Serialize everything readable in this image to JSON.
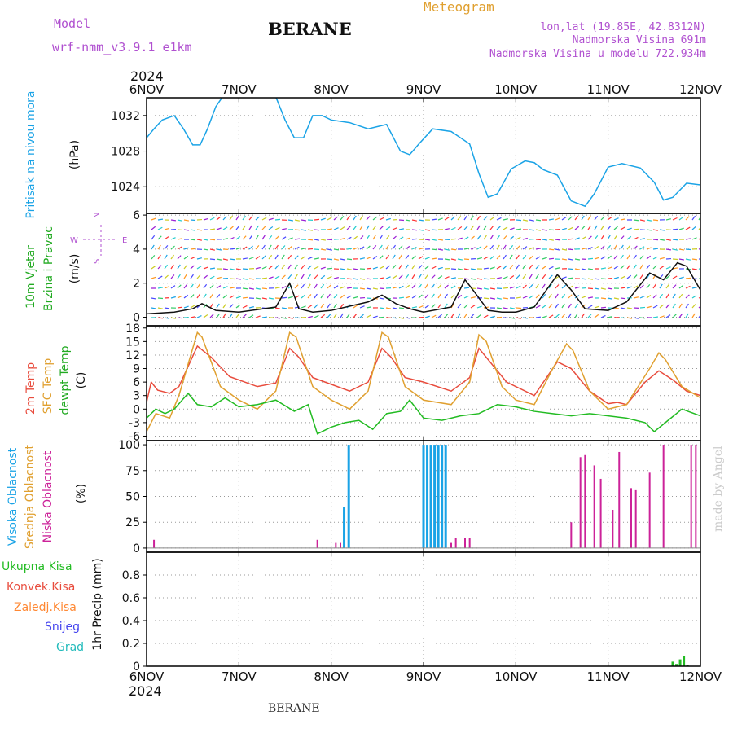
{
  "header": {
    "model_label": "Model",
    "model_name": "wrf-nmm_v3.9.1  e1km",
    "station": "BERANE",
    "meteogram_label": "Meteogram",
    "location_line": "lon,lat (19.85E, 42.8312N)",
    "elevation_line": "Nadmorska Visina 691m",
    "model_elevation_line": "Nadmorska Visina u modelu 722.934m",
    "bottom_station": "BERANE",
    "watermark": "made by Angel"
  },
  "time_axis": {
    "year": "2024",
    "ticks": [
      "6NOV",
      "7NOV",
      "8NOV",
      "9NOV",
      "10NOV",
      "11NOV",
      "12NOV"
    ]
  },
  "colors": {
    "pressure": "#1aa3e6",
    "temp_2m": "#e84c3d",
    "temp_sfc": "#e0a030",
    "dewpoint": "#22bb22",
    "cloud_high": "#1aa3e6",
    "cloud_mid": "#e0a030",
    "cloud_low": "#cc2299",
    "precip_total": "#22bb22",
    "precip_conv": "#e84c3d",
    "freezing": "#ff8833",
    "snow": "#4444ee",
    "hail": "#22bbbb",
    "wind_label": "#22aa22",
    "compass": "#b050d0",
    "header_purple": "#b050d0",
    "meteogram_gold": "#e0a030"
  },
  "chart_data": [
    {
      "type": "line",
      "title": "Pritisak na nivou mora",
      "ylabel": "(hPa)",
      "ylim": [
        1021,
        1034
      ],
      "yticks": [
        1024,
        1028,
        1032
      ],
      "grid": true,
      "x_units": "days since 6NOV 00UTC",
      "series": [
        {
          "name": "Pritisak na nivou mora",
          "x": [
            0,
            0.08,
            0.17,
            0.3,
            0.4,
            0.5,
            0.58,
            0.66,
            0.75,
            0.85,
            1.0,
            1.15,
            1.25,
            1.35,
            1.5,
            1.6,
            1.7,
            1.8,
            1.9,
            2.0,
            2.2,
            2.4,
            2.6,
            2.75,
            2.85,
            2.95,
            3.1,
            3.3,
            3.5,
            3.6,
            3.7,
            3.8,
            3.95,
            4.1,
            4.2,
            4.3,
            4.45,
            4.6,
            4.75,
            4.85,
            5.0,
            5.15,
            5.35,
            5.5,
            5.6,
            5.7,
            5.85,
            6.0
          ],
          "values": [
            1029.5,
            1030.5,
            1031.5,
            1032,
            1030.5,
            1028.7,
            1028.7,
            1030.5,
            1033,
            1034.5,
            1034.8,
            1035,
            1035.8,
            1035.4,
            1031.5,
            1029.5,
            1029.5,
            1032,
            1032,
            1031.5,
            1031.2,
            1030.5,
            1031,
            1028,
            1027.6,
            1028.8,
            1030.5,
            1030.2,
            1028.8,
            1025.5,
            1022.8,
            1023.2,
            1026,
            1026.9,
            1026.7,
            1025.9,
            1025.3,
            1022.4,
            1021.8,
            1023.2,
            1026.2,
            1026.6,
            1026.1,
            1024.5,
            1022.5,
            1022.8,
            1024.4,
            1024.2
          ]
        }
      ]
    },
    {
      "type": "line",
      "title": "10m Vjetar Brzina i Pravac",
      "ylabel": "(m/s)",
      "ylim": [
        -0.5,
        6.1
      ],
      "yticks": [
        0,
        2,
        4,
        6
      ],
      "grid": true,
      "compass": {
        "north": "N",
        "south": "S",
        "west": "W",
        "east": "E"
      },
      "series": [
        {
          "name": "Brzina vjetra",
          "x": [
            0,
            0.3,
            0.5,
            0.6,
            0.75,
            1.0,
            1.4,
            1.55,
            1.65,
            1.8,
            2.0,
            2.4,
            2.55,
            2.7,
            2.85,
            3.0,
            3.3,
            3.45,
            3.55,
            3.7,
            3.85,
            4.0,
            4.2,
            4.45,
            4.6,
            4.75,
            5.0,
            5.2,
            5.45,
            5.6,
            5.75,
            5.85,
            6.0
          ],
          "values": [
            0.2,
            0.3,
            0.5,
            0.8,
            0.4,
            0.3,
            0.6,
            2.0,
            0.5,
            0.3,
            0.4,
            0.9,
            1.3,
            0.8,
            0.5,
            0.3,
            0.6,
            2.2,
            1.5,
            0.4,
            0.3,
            0.3,
            0.6,
            2.5,
            1.6,
            0.5,
            0.4,
            0.9,
            2.6,
            2.2,
            3.2,
            3.0,
            1.6
          ]
        }
      ]
    },
    {
      "type": "line",
      "title": "2m Temp / SFC Temp / dewpt Temp",
      "ylabel": "(C)",
      "ylim": [
        -7,
        18.5
      ],
      "yticks": [
        -6,
        -3,
        0,
        3,
        6,
        9,
        12,
        15,
        18
      ],
      "grid": true,
      "series": [
        {
          "name": "2m Temp",
          "x": [
            0,
            0.05,
            0.12,
            0.25,
            0.35,
            0.55,
            0.7,
            0.9,
            1.2,
            1.4,
            1.55,
            1.65,
            1.8,
            2.0,
            2.2,
            2.4,
            2.55,
            2.65,
            2.8,
            3.0,
            3.3,
            3.5,
            3.6,
            3.7,
            3.9,
            4.2,
            4.45,
            4.6,
            4.8,
            5.0,
            5.1,
            5.2,
            5.4,
            5.55,
            5.7,
            5.85,
            6.0
          ],
          "values": [
            1.5,
            6.0,
            4.2,
            3.5,
            5.0,
            14.0,
            11.5,
            7.2,
            5.0,
            5.8,
            13.5,
            11.5,
            7.0,
            5.5,
            4.0,
            6.0,
            13.5,
            11.5,
            7.0,
            6.0,
            4.0,
            7.0,
            13.5,
            11.0,
            6.0,
            3.0,
            10.5,
            9.0,
            4.0,
            1.2,
            1.5,
            1.0,
            6.0,
            8.5,
            6.5,
            4.0,
            3.0
          ]
        },
        {
          "name": "SFC Temp",
          "x": [
            0,
            0.1,
            0.25,
            0.35,
            0.55,
            0.6,
            0.8,
            1.0,
            1.2,
            1.4,
            1.55,
            1.62,
            1.8,
            2.0,
            2.2,
            2.4,
            2.55,
            2.62,
            2.8,
            3.0,
            3.3,
            3.5,
            3.6,
            3.68,
            3.85,
            4.0,
            4.2,
            4.4,
            4.55,
            4.62,
            4.8,
            5.0,
            5.2,
            5.45,
            5.55,
            5.62,
            5.8,
            6.0
          ],
          "values": [
            -5,
            -1,
            -2,
            3,
            17,
            16,
            5,
            2,
            0,
            4,
            17,
            16,
            5,
            2,
            0,
            4,
            17,
            16,
            5,
            2,
            1,
            6,
            16.5,
            15,
            5,
            2,
            1,
            9,
            14.5,
            13,
            4,
            0,
            1,
            9,
            12.5,
            11,
            5,
            2.5
          ]
        },
        {
          "name": "dewpt Temp",
          "x": [
            0,
            0.1,
            0.2,
            0.3,
            0.45,
            0.55,
            0.7,
            0.85,
            1.0,
            1.2,
            1.4,
            1.6,
            1.75,
            1.85,
            2.0,
            2.15,
            2.3,
            2.45,
            2.6,
            2.75,
            2.85,
            3.0,
            3.2,
            3.4,
            3.6,
            3.8,
            4.0,
            4.2,
            4.4,
            4.6,
            4.8,
            5.0,
            5.2,
            5.4,
            5.5,
            5.65,
            5.8,
            6.0
          ],
          "values": [
            -2,
            0,
            -1,
            0,
            3.5,
            1.0,
            0.5,
            2.5,
            0.5,
            1.0,
            2.0,
            -0.5,
            1.0,
            -5.5,
            -4,
            -3,
            -2.5,
            -4.5,
            -1,
            -0.5,
            2,
            -2,
            -2.5,
            -1.5,
            -1,
            1,
            0.5,
            -0.5,
            -1.0,
            -1.5,
            -1.0,
            -1.5,
            -2,
            -3,
            -5,
            -2.5,
            0,
            -1.5
          ]
        }
      ]
    },
    {
      "type": "bar",
      "title": "Visoka / Srednja / Niska Oblacnost",
      "ylabel": "(%)",
      "ylim": [
        -4,
        104
      ],
      "yticks": [
        0,
        25,
        50,
        75,
        100
      ],
      "grid": true,
      "series": [
        {
          "name": "Visoka Oblacnost",
          "x": [
            2.14,
            2.19,
            3.0,
            3.04,
            3.08,
            3.12,
            3.16,
            3.2,
            3.24
          ],
          "values": [
            40,
            100,
            100,
            100,
            100,
            100,
            100,
            100,
            100
          ]
        },
        {
          "name": "Niska Oblacnost",
          "x": [
            0.08,
            1.85,
            2.05,
            2.1,
            3.3,
            3.35,
            3.45,
            3.5,
            4.6,
            4.7,
            4.75,
            4.85,
            4.92,
            5.0,
            5.05,
            5.12,
            5.25,
            5.3,
            5.45,
            5.6,
            5.65,
            5.7,
            5.75,
            5.8,
            5.9,
            5.95
          ],
          "values": [
            8,
            8,
            5,
            5,
            5,
            10,
            10,
            10,
            25,
            88,
            90,
            80,
            67,
            0,
            37,
            93,
            58,
            56,
            73,
            100,
            0,
            0,
            0,
            0,
            100,
            100
          ]
        }
      ]
    },
    {
      "type": "bar",
      "title": "1hr Precip",
      "ylabel": "1hr Precip (mm)",
      "ylim": [
        0,
        1.0
      ],
      "yticks": [
        0,
        0.2,
        0.4,
        0.6,
        0.8
      ],
      "grid": true,
      "legend": [
        "Ukupna Kisa",
        "Konvek.Kisa",
        "Zaledj.Kisa",
        "Snijeg",
        "Grad"
      ],
      "series": [
        {
          "name": "Ukupna Kisa",
          "x": [
            5.7,
            5.74,
            5.78,
            5.82,
            5.86
          ],
          "values": [
            0.04,
            0.02,
            0.06,
            0.09,
            0.01
          ]
        }
      ]
    }
  ]
}
